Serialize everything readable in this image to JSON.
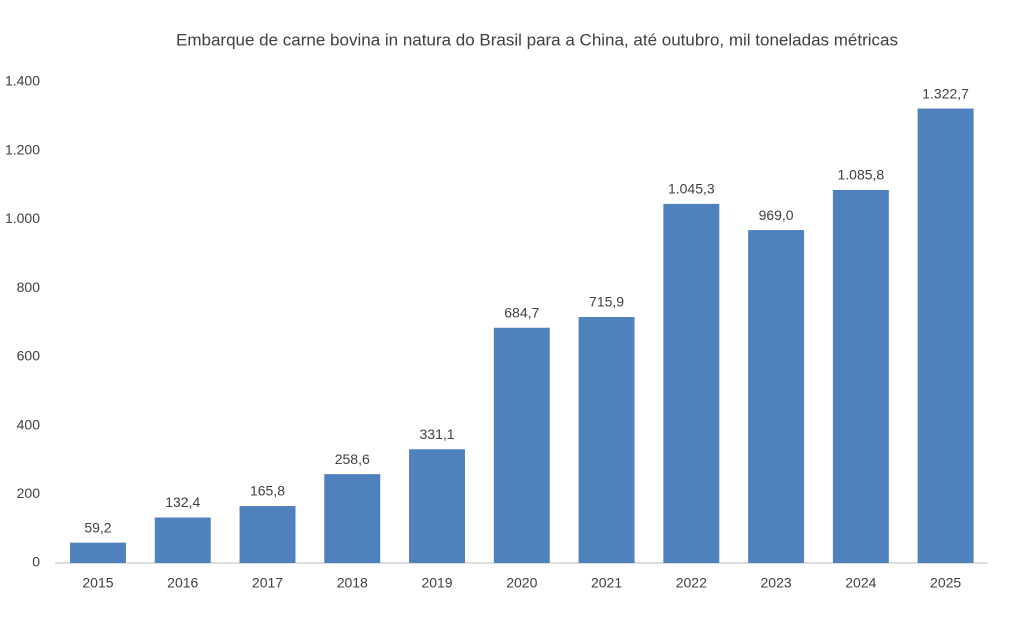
{
  "chart_data": {
    "type": "bar",
    "title": "Embarque de carne bovina in natura do Brasil para a China, até outubro, mil toneladas métricas",
    "categories": [
      "2015",
      "2016",
      "2017",
      "2018",
      "2019",
      "2020",
      "2021",
      "2022",
      "2023",
      "2024",
      "2025"
    ],
    "values": [
      59.2,
      132.4,
      165.8,
      258.6,
      331.1,
      684.7,
      715.9,
      1045.3,
      969.0,
      1085.8,
      1322.7
    ],
    "value_labels": [
      "59,2",
      "132,4",
      "165,8",
      "258,6",
      "331,1",
      "684,7",
      "715,9",
      "1.045,3",
      "969,0",
      "1.085,8",
      "1.322,7"
    ],
    "color": "#4f81bd",
    "ylim": [
      0,
      1400
    ],
    "yticks": [
      0,
      200,
      400,
      600,
      800,
      {
        "value": 1000,
        "label": "1.000"
      },
      {
        "value": 1200,
        "label": "1.200"
      },
      {
        "value": 1400,
        "label": "1.400"
      }
    ],
    "grid": false
  }
}
